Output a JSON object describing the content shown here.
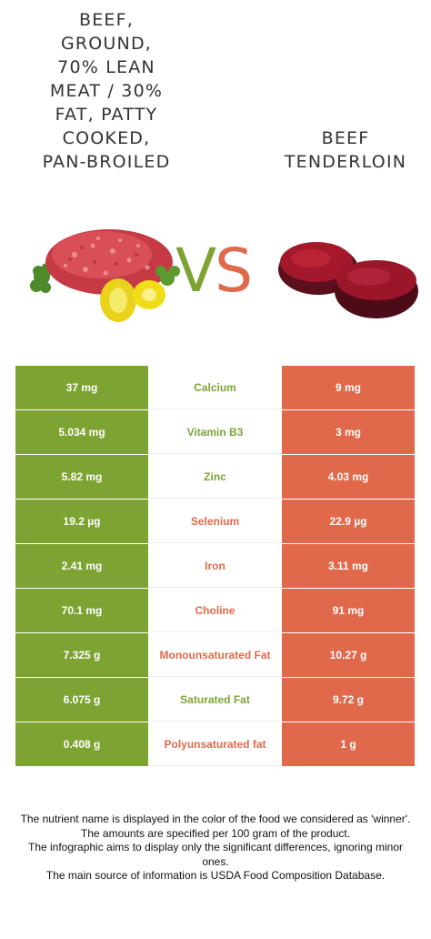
{
  "left_food": {
    "name_lines": [
      "BEEF,",
      "GROUND,",
      "70% LEAN",
      "MEAT / 30%",
      "FAT, PATTY",
      "COOKED,",
      "PAN-BROILED"
    ],
    "color": "#7da332"
  },
  "right_food": {
    "name_lines": [
      "BEEF",
      "TENDERLOIN"
    ],
    "color": "#e0694b"
  },
  "vs": {
    "v": "V",
    "s": "S"
  },
  "nutrients": [
    {
      "left": "37 mg",
      "name": "Calcium",
      "right": "9 mg",
      "winner": "left"
    },
    {
      "left": "5.034 mg",
      "name": "Vitamin B3",
      "right": "3 mg",
      "winner": "left"
    },
    {
      "left": "5.82 mg",
      "name": "Zinc",
      "right": "4.03 mg",
      "winner": "left"
    },
    {
      "left": "19.2 µg",
      "name": "Selenium",
      "right": "22.9 µg",
      "winner": "right"
    },
    {
      "left": "2.41 mg",
      "name": "Iron",
      "right": "3.11 mg",
      "winner": "right"
    },
    {
      "left": "70.1 mg",
      "name": "Choline",
      "right": "91 mg",
      "winner": "right"
    },
    {
      "left": "7.325 g",
      "name": "Monounsaturated Fat",
      "right": "10.27 g",
      "winner": "right"
    },
    {
      "left": "6.075 g",
      "name": "Saturated Fat",
      "right": "9.72 g",
      "winner": "left"
    },
    {
      "left": "0.408 g",
      "name": "Polyunsaturated fat",
      "right": "1 g",
      "winner": "right"
    }
  ],
  "footnote": [
    "The nutrient name is displayed in the color of the food we considered as 'winner'.",
    "The amounts are specified per 100 gram of the product.",
    "The infographic aims to display only the significant differences, ignoring minor ones.",
    "The main source of information is USDA Food Composition Database."
  ]
}
